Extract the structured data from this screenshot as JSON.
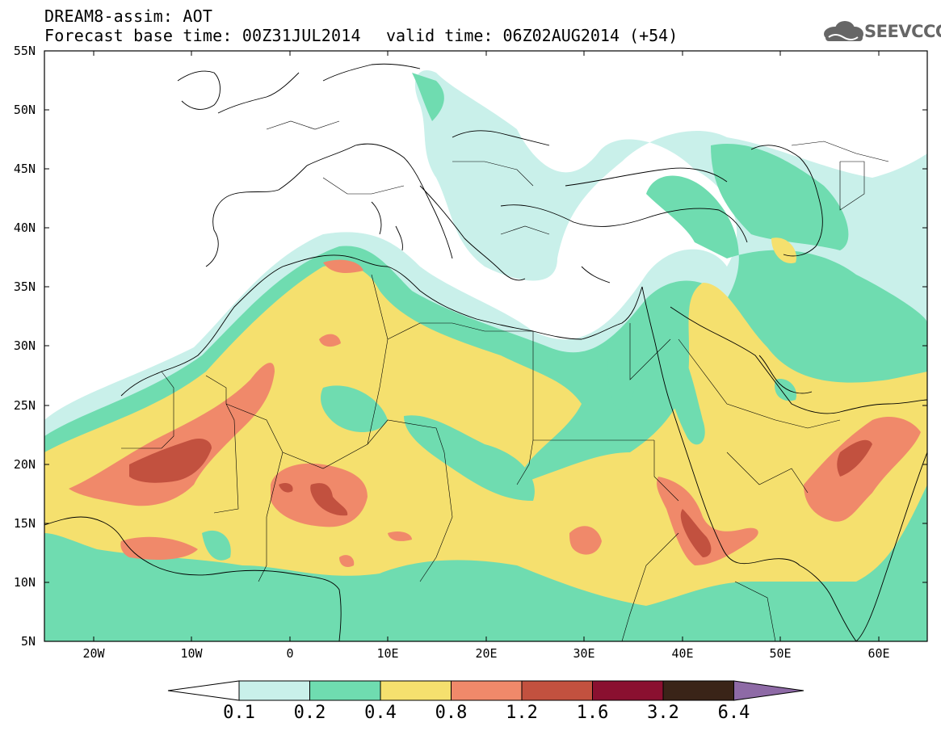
{
  "title": {
    "model": "DREAM8-assim: AOT",
    "forecast": "Forecast base time: 00Z31JUL2014",
    "valid": "valid time: 06Z02AUG2014 (+54)"
  },
  "logo": {
    "text": "SEEVCCC",
    "icon": "cloud-icon"
  },
  "axes": {
    "lat_labels": [
      "55N",
      "50N",
      "45N",
      "40N",
      "35N",
      "30N",
      "25N",
      "20N",
      "15N",
      "10N",
      "5N"
    ],
    "lon_labels": [
      "20W",
      "10W",
      "0",
      "10E",
      "20E",
      "30E",
      "40E",
      "50E",
      "60E"
    ]
  },
  "colorbar": {
    "labels": [
      "0.1",
      "0.2",
      "0.4",
      "0.8",
      "1.2",
      "1.6",
      "3.2",
      "6.4"
    ],
    "colors": [
      "#ffffff",
      "#c9f0ea",
      "#6fdcb0",
      "#f5e06e",
      "#f0896a",
      "#c2513f",
      "#8a1030",
      "#3a2418",
      "#8e6aa6"
    ]
  }
}
